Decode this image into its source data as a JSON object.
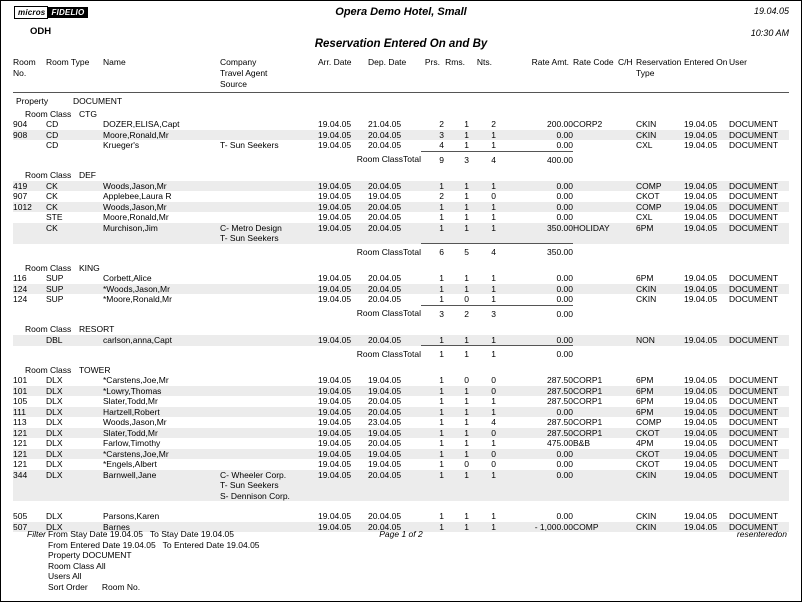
{
  "page": {
    "logo_micros": "micros",
    "logo_fidelio": "FIDELIO",
    "property_code": "ODH",
    "hotel_name": "Opera Demo Hotel, Small",
    "report_date": "19.04.05",
    "report_time": "10:30 AM",
    "report_title": "Reservation Entered On and By"
  },
  "labels": {
    "property_label": "Property",
    "room_class_label": "Room Class",
    "total_label": "Room ClassTotal"
  },
  "property_value": "DOCUMENT",
  "table": {
    "columns": [
      "Room No.",
      "Room Type",
      "Name",
      "Company\nTravel Agent\nSource",
      "Arr. Date",
      "Dep. Date",
      "Prs.",
      "Rms.",
      "Nts.",
      "Rate Amt.",
      "Rate Code",
      "C/H",
      "Reservation Type",
      "Entered On",
      "User"
    ]
  },
  "sections": [
    {
      "room_class": "CTG",
      "rows": [
        {
          "room_no": "904",
          "room_type": "CD",
          "name": "DOZER,ELISA,Capt",
          "company": [],
          "arr": "19.04.05",
          "dep": "21.04.05",
          "prs": "2",
          "rms": "1",
          "nts": "2",
          "rate_amt": "200.00",
          "rate_code": "CORP2",
          "ch": "",
          "resv_type": "CKIN",
          "entered_on": "19.04.05",
          "user": "DOCUMENT"
        },
        {
          "room_no": "908",
          "room_type": "CD",
          "name": "Moore,Ronald,Mr",
          "company": [],
          "arr": "19.04.05",
          "dep": "20.04.05",
          "prs": "3",
          "rms": "1",
          "nts": "1",
          "rate_amt": "0.00",
          "rate_code": "",
          "ch": "",
          "resv_type": "CKIN",
          "entered_on": "19.04.05",
          "user": "DOCUMENT"
        },
        {
          "room_no": "",
          "room_type": "CD",
          "name": "Krueger's",
          "company": [
            "T- Sun Seekers"
          ],
          "arr": "19.04.05",
          "dep": "20.04.05",
          "prs": "4",
          "rms": "1",
          "nts": "1",
          "rate_amt": "0.00",
          "rate_code": "",
          "ch": "",
          "resv_type": "CXL",
          "entered_on": "19.04.05",
          "user": "DOCUMENT"
        }
      ],
      "total": {
        "prs": "9",
        "rms": "3",
        "nts": "4",
        "rate_amt": "400.00"
      }
    },
    {
      "room_class": "DEF",
      "rows": [
        {
          "room_no": "419",
          "room_type": "CK",
          "name": "Woods,Jason,Mr",
          "company": [],
          "arr": "19.04.05",
          "dep": "20.04.05",
          "prs": "1",
          "rms": "1",
          "nts": "1",
          "rate_amt": "0.00",
          "rate_code": "",
          "ch": "",
          "resv_type": "COMP",
          "entered_on": "19.04.05",
          "user": "DOCUMENT"
        },
        {
          "room_no": "907",
          "room_type": "CK",
          "name": "Applebee,Laura R",
          "company": [],
          "arr": "19.04.05",
          "dep": "19.04.05",
          "prs": "2",
          "rms": "1",
          "nts": "0",
          "rate_amt": "0.00",
          "rate_code": "",
          "ch": "",
          "resv_type": "CKOT",
          "entered_on": "19.04.05",
          "user": "DOCUMENT"
        },
        {
          "room_no": "1012",
          "room_type": "CK",
          "name": "Woods,Jason,Mr",
          "company": [],
          "arr": "19.04.05",
          "dep": "20.04.05",
          "prs": "1",
          "rms": "1",
          "nts": "1",
          "rate_amt": "0.00",
          "rate_code": "",
          "ch": "",
          "resv_type": "COMP",
          "entered_on": "19.04.05",
          "user": "DOCUMENT"
        },
        {
          "room_no": "",
          "room_type": "STE",
          "name": "Moore,Ronald,Mr",
          "company": [],
          "arr": "19.04.05",
          "dep": "20.04.05",
          "prs": "1",
          "rms": "1",
          "nts": "1",
          "rate_amt": "0.00",
          "rate_code": "",
          "ch": "",
          "resv_type": "CXL",
          "entered_on": "19.04.05",
          "user": "DOCUMENT"
        },
        {
          "room_no": "",
          "room_type": "CK",
          "name": "Murchison,Jim",
          "company": [
            "C- Metro Design",
            "T- Sun Seekers"
          ],
          "arr": "19.04.05",
          "dep": "20.04.05",
          "prs": "1",
          "rms": "1",
          "nts": "1",
          "rate_amt": "350.00",
          "rate_code": "HOLIDAY",
          "ch": "",
          "resv_type": "6PM",
          "entered_on": "19.04.05",
          "user": "DOCUMENT"
        }
      ],
      "total": {
        "prs": "6",
        "rms": "5",
        "nts": "4",
        "rate_amt": "350.00"
      }
    },
    {
      "room_class": "KING",
      "rows": [
        {
          "room_no": "116",
          "room_type": "SUP",
          "name": "Corbett,Alice",
          "company": [],
          "arr": "19.04.05",
          "dep": "20.04.05",
          "prs": "1",
          "rms": "1",
          "nts": "1",
          "rate_amt": "0.00",
          "rate_code": "",
          "ch": "",
          "resv_type": "6PM",
          "entered_on": "19.04.05",
          "user": "DOCUMENT"
        },
        {
          "room_no": "124",
          "room_type": "SUP",
          "name": "*Woods,Jason,Mr",
          "company": [],
          "arr": "19.04.05",
          "dep": "20.04.05",
          "prs": "1",
          "rms": "1",
          "nts": "1",
          "rate_amt": "0.00",
          "rate_code": "",
          "ch": "",
          "resv_type": "CKIN",
          "entered_on": "19.04.05",
          "user": "DOCUMENT"
        },
        {
          "room_no": "124",
          "room_type": "SUP",
          "name": "*Moore,Ronald,Mr",
          "company": [],
          "arr": "19.04.05",
          "dep": "20.04.05",
          "prs": "1",
          "rms": "0",
          "nts": "1",
          "rate_amt": "0.00",
          "rate_code": "",
          "ch": "",
          "resv_type": "CKIN",
          "entered_on": "19.04.05",
          "user": "DOCUMENT"
        }
      ],
      "total": {
        "prs": "3",
        "rms": "2",
        "nts": "3",
        "rate_amt": "0.00"
      }
    },
    {
      "room_class": "RESORT",
      "rows": [
        {
          "room_no": "",
          "room_type": "DBL",
          "name": "carlson,anna,Capt",
          "company": [],
          "arr": "19.04.05",
          "dep": "20.04.05",
          "prs": "1",
          "rms": "1",
          "nts": "1",
          "rate_amt": "0.00",
          "rate_code": "",
          "ch": "",
          "resv_type": "NON",
          "entered_on": "19.04.05",
          "user": "DOCUMENT"
        }
      ],
      "total": {
        "prs": "1",
        "rms": "1",
        "nts": "1",
        "rate_amt": "0.00"
      }
    },
    {
      "room_class": "TOWER",
      "rows": [
        {
          "room_no": "101",
          "room_type": "DLX",
          "name": "*Carstens,Joe,Mr",
          "company": [],
          "arr": "19.04.05",
          "dep": "19.04.05",
          "prs": "1",
          "rms": "0",
          "nts": "0",
          "rate_amt": "287.50",
          "rate_code": "CORP1",
          "ch": "",
          "resv_type": "6PM",
          "entered_on": "19.04.05",
          "user": "DOCUMENT"
        },
        {
          "room_no": "101",
          "room_type": "DLX",
          "name": "*Lowry,Thomas",
          "company": [],
          "arr": "19.04.05",
          "dep": "19.04.05",
          "prs": "1",
          "rms": "1",
          "nts": "0",
          "rate_amt": "287.50",
          "rate_code": "CORP1",
          "ch": "",
          "resv_type": "6PM",
          "entered_on": "19.04.05",
          "user": "DOCUMENT"
        },
        {
          "room_no": "105",
          "room_type": "DLX",
          "name": "Slater,Todd,Mr",
          "company": [],
          "arr": "19.04.05",
          "dep": "20.04.05",
          "prs": "1",
          "rms": "1",
          "nts": "1",
          "rate_amt": "287.50",
          "rate_code": "CORP1",
          "ch": "",
          "resv_type": "6PM",
          "entered_on": "19.04.05",
          "user": "DOCUMENT"
        },
        {
          "room_no": "111",
          "room_type": "DLX",
          "name": "Hartzell,Robert",
          "company": [],
          "arr": "19.04.05",
          "dep": "20.04.05",
          "prs": "1",
          "rms": "1",
          "nts": "1",
          "rate_amt": "0.00",
          "rate_code": "",
          "ch": "",
          "resv_type": "6PM",
          "entered_on": "19.04.05",
          "user": "DOCUMENT"
        },
        {
          "room_no": "113",
          "room_type": "DLX",
          "name": "Woods,Jason,Mr",
          "company": [],
          "arr": "19.04.05",
          "dep": "23.04.05",
          "prs": "1",
          "rms": "1",
          "nts": "4",
          "rate_amt": "287.50",
          "rate_code": "CORP1",
          "ch": "",
          "resv_type": "COMP",
          "entered_on": "19.04.05",
          "user": "DOCUMENT"
        },
        {
          "room_no": "121",
          "room_type": "DLX",
          "name": "Slater,Todd,Mr",
          "company": [],
          "arr": "19.04.05",
          "dep": "19.04.05",
          "prs": "1",
          "rms": "1",
          "nts": "0",
          "rate_amt": "287.50",
          "rate_code": "CORP1",
          "ch": "",
          "resv_type": "CKOT",
          "entered_on": "19.04.05",
          "user": "DOCUMENT"
        },
        {
          "room_no": "121",
          "room_type": "DLX",
          "name": "Farlow,Timothy",
          "company": [],
          "arr": "19.04.05",
          "dep": "20.04.05",
          "prs": "1",
          "rms": "1",
          "nts": "1",
          "rate_amt": "475.00",
          "rate_code": "B&B",
          "ch": "",
          "resv_type": "4PM",
          "entered_on": "19.04.05",
          "user": "DOCUMENT"
        },
        {
          "room_no": "121",
          "room_type": "DLX",
          "name": "*Carstens,Joe,Mr",
          "company": [],
          "arr": "19.04.05",
          "dep": "19.04.05",
          "prs": "1",
          "rms": "1",
          "nts": "0",
          "rate_amt": "0.00",
          "rate_code": "",
          "ch": "",
          "resv_type": "CKOT",
          "entered_on": "19.04.05",
          "user": "DOCUMENT"
        },
        {
          "room_no": "121",
          "room_type": "DLX",
          "name": "*Engels,Albert",
          "company": [],
          "arr": "19.04.05",
          "dep": "19.04.05",
          "prs": "1",
          "rms": "0",
          "nts": "0",
          "rate_amt": "0.00",
          "rate_code": "",
          "ch": "",
          "resv_type": "CKOT",
          "entered_on": "19.04.05",
          "user": "DOCUMENT"
        },
        {
          "room_no": "344",
          "room_type": "DLX",
          "name": "Barnwell,Jane",
          "company": [
            "C- Wheeler Corp.",
            "T- Sun Seekers",
            "S- Dennison Corp."
          ],
          "arr": "19.04.05",
          "dep": "20.04.05",
          "prs": "1",
          "rms": "1",
          "nts": "1",
          "rate_amt": "0.00",
          "rate_code": "",
          "ch": "",
          "resv_type": "CKIN",
          "entered_on": "19.04.05",
          "user": "DOCUMENT",
          "gap_after": true
        },
        {
          "room_no": "505",
          "room_type": "DLX",
          "name": "Parsons,Karen",
          "company": [],
          "arr": "19.04.05",
          "dep": "20.04.05",
          "prs": "1",
          "rms": "1",
          "nts": "1",
          "rate_amt": "0.00",
          "rate_code": "",
          "ch": "",
          "resv_type": "CKIN",
          "entered_on": "19.04.05",
          "user": "DOCUMENT"
        },
        {
          "room_no": "507",
          "room_type": "DLX",
          "name": "Barnes",
          "company": [],
          "arr": "19.04.05",
          "dep": "20.04.05",
          "prs": "1",
          "rms": "1",
          "nts": "1",
          "rate_amt": "- 1,000.00",
          "rate_code": "COMP",
          "ch": "",
          "resv_type": "CKIN",
          "entered_on": "19.04.05",
          "user": "DOCUMENT"
        }
      ],
      "total": null
    }
  ],
  "footer": {
    "filter_label": "Filter",
    "filter_lines": [
      "From Stay Date 19.04.05   To Stay Date 19.04.05",
      "From Entered Date 19.04.05   To Entered Date 19.04.05",
      "Property DOCUMENT",
      "Room Class All",
      "Users All",
      "Sort Order      Room No."
    ],
    "page_info": "Page 1 of 2",
    "report_id": "resenteredon"
  }
}
